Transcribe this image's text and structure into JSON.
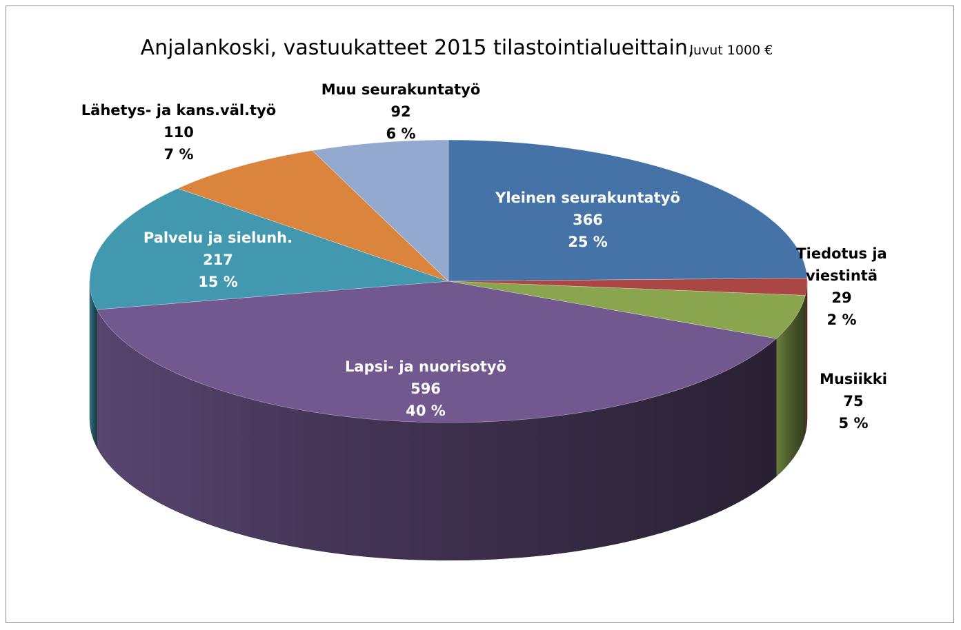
{
  "chart_data": {
    "type": "pie",
    "title": "Anjalankoski, vastuukatteet 2015 tilastointialueittain,",
    "subtitle": "luvut 1000 €",
    "unit": "1000 €",
    "three_d": true,
    "slices": [
      {
        "name": "Yleinen seurakuntatyö",
        "value": 366,
        "percent": "25 %",
        "color": "#4572A7",
        "value_text": "366"
      },
      {
        "name": "Tiedotus ja viestintä",
        "name_lines": [
          "Tiedotus ja",
          "viestintä"
        ],
        "value": 29,
        "percent": "2 %",
        "color": "#AA4643",
        "value_text": "29"
      },
      {
        "name": "Musiikki",
        "value": 75,
        "percent": "5 %",
        "color": "#89A54E",
        "value_text": "75"
      },
      {
        "name": "Lapsi- ja nuorisotyö",
        "value": 596,
        "percent": "40 %",
        "color": "#71588F",
        "value_text": "596"
      },
      {
        "name": "Palvelu ja sielunh.",
        "value": 217,
        "percent": "15 %",
        "color": "#4198AF",
        "value_text": "217"
      },
      {
        "name": "Lähetys- ja kans.väl.työ",
        "value": 110,
        "percent": "7 %",
        "color": "#DB843D",
        "value_text": "110"
      },
      {
        "name": "Muu seurakuntatyö",
        "value": 92,
        "percent": "6 %",
        "color": "#93A9CF",
        "value_text": "92"
      }
    ]
  }
}
